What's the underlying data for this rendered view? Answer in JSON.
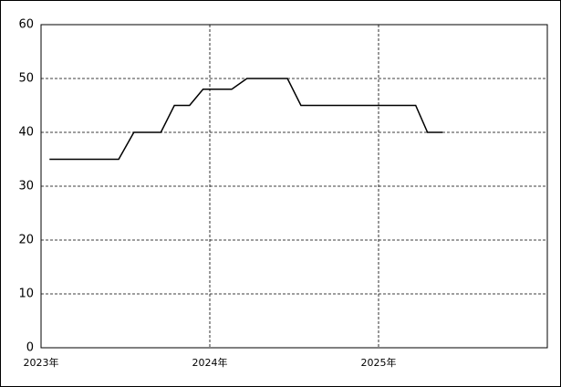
{
  "chart_data": {
    "type": "line",
    "x": [
      2023.05,
      2023.46,
      2023.55,
      2023.71,
      2023.79,
      2023.88,
      2023.96,
      2024.13,
      2024.22,
      2024.46,
      2024.54,
      2025.22,
      2025.29,
      2025.38
    ],
    "series": [
      {
        "color": "#000000",
        "values": [
          35,
          35,
          40,
          40,
          45,
          45,
          48,
          48,
          50,
          50,
          45,
          45,
          40,
          40
        ]
      }
    ],
    "xlim": [
      2023,
      2026
    ],
    "xticks": [
      {
        "value": 2023,
        "label": "2023年"
      },
      {
        "value": 2024,
        "label": "2024年"
      },
      {
        "value": 2025,
        "label": "2025年"
      }
    ],
    "ylim": [
      0,
      60
    ],
    "yticks": [
      0,
      10,
      20,
      30,
      40,
      50,
      60
    ],
    "grid": true
  }
}
